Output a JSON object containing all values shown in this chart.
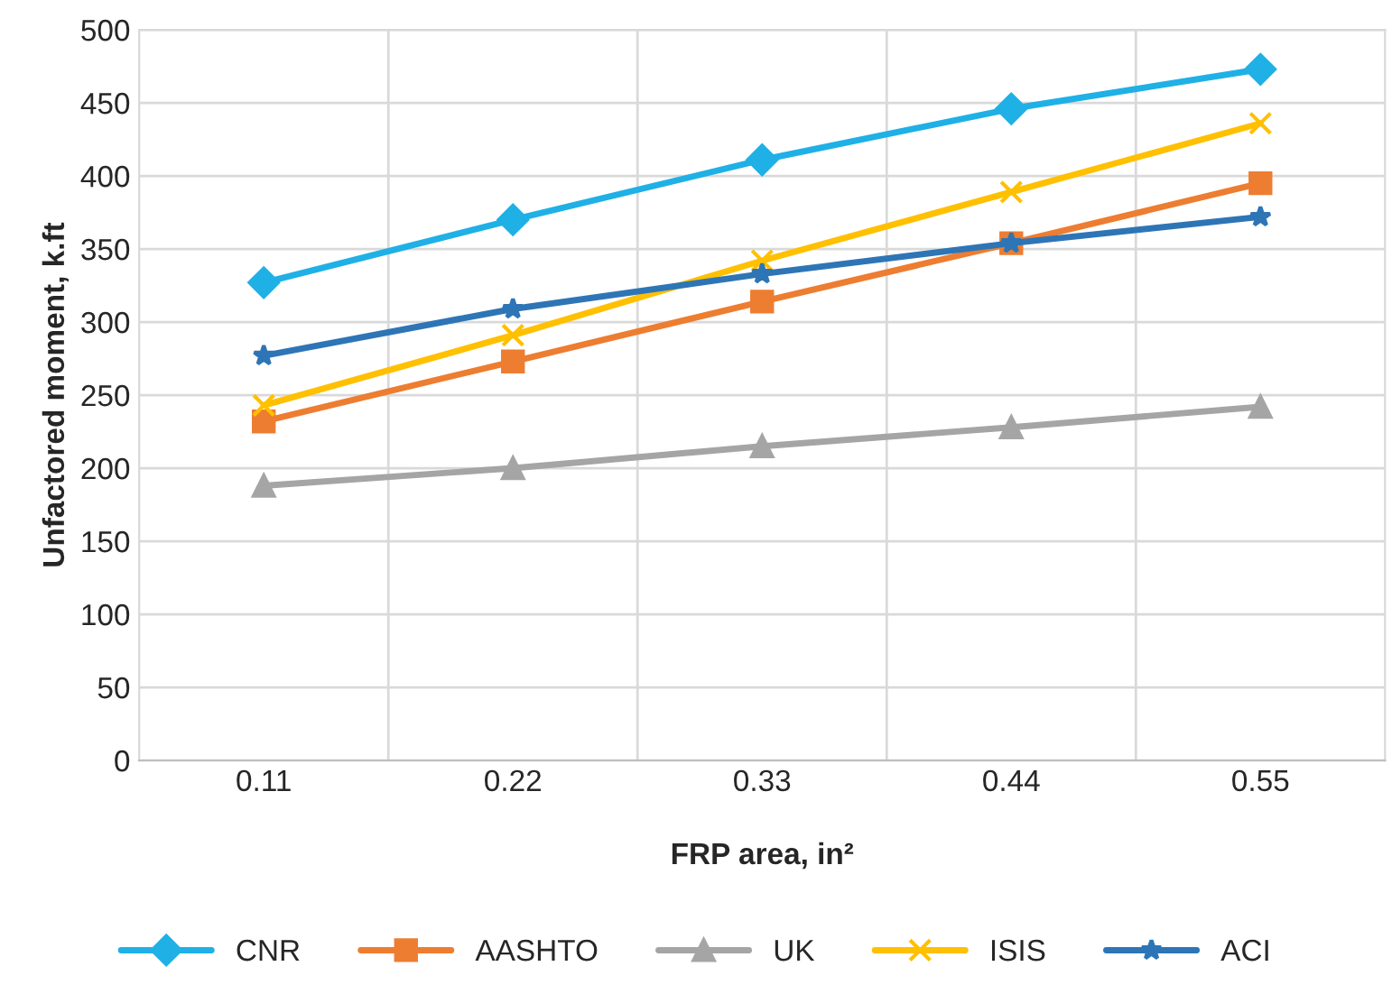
{
  "chart_data": {
    "type": "line",
    "xlabel": "FRP area, in²",
    "ylabel": "Unfactored moment, k.ft",
    "categories": [
      "0.11",
      "0.22",
      "0.33",
      "0.44",
      "0.55"
    ],
    "series": [
      {
        "name": "CNR",
        "color": "#1fb0e6",
        "marker": "diamond",
        "values": [
          327,
          370,
          411,
          446,
          473
        ]
      },
      {
        "name": "AASHTO",
        "color": "#ed7d31",
        "marker": "square",
        "values": [
          232,
          273,
          314,
          354,
          395
        ]
      },
      {
        "name": "UK",
        "color": "#a5a5a5",
        "marker": "triangle",
        "values": [
          188,
          200,
          215,
          228,
          242
        ]
      },
      {
        "name": "ISIS",
        "color": "#ffc000",
        "marker": "cross",
        "values": [
          243,
          291,
          342,
          389,
          436
        ]
      },
      {
        "name": "ACI",
        "color": "#2e75b6",
        "marker": "star",
        "values": [
          277,
          309,
          333,
          354,
          372
        ]
      }
    ],
    "ylim": [
      0,
      500
    ],
    "yticks": [
      0,
      50,
      100,
      150,
      200,
      250,
      300,
      350,
      400,
      450,
      500
    ],
    "grid": true,
    "legend": "bottom",
    "line_style": "solid"
  }
}
